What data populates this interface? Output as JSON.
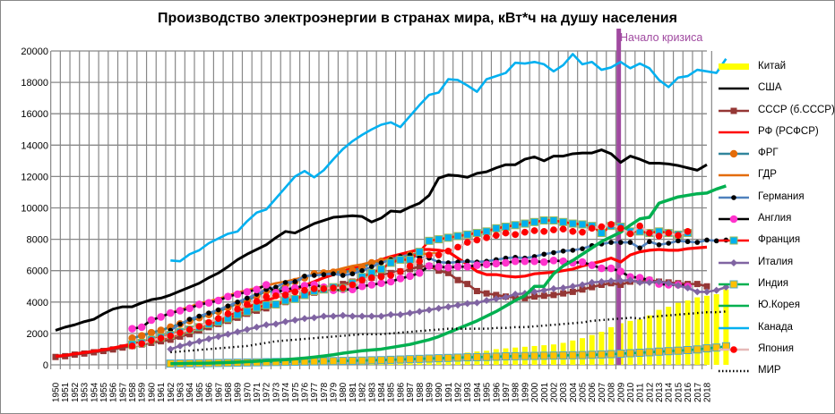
{
  "chart_data": {
    "type": "line",
    "title": "Производство электроэнергии в странах мира, кВт*ч на душу населения",
    "xlabel": "",
    "ylabel": "",
    "ylim": [
      0,
      20000
    ],
    "yticks": [
      0,
      2000,
      4000,
      6000,
      8000,
      10000,
      12000,
      14000,
      16000,
      18000,
      20000
    ],
    "grid": true,
    "legend_position": "right",
    "x": [
      1950,
      1951,
      1952,
      1953,
      1954,
      1955,
      1956,
      1957,
      1958,
      1959,
      1960,
      1961,
      1962,
      1963,
      1964,
      1965,
      1966,
      1967,
      1968,
      1969,
      1970,
      1971,
      1972,
      1973,
      1974,
      1975,
      1976,
      1977,
      1978,
      1979,
      1980,
      1981,
      1982,
      1983,
      1984,
      1985,
      1986,
      1987,
      1988,
      1989,
      1990,
      1991,
      1992,
      1993,
      1994,
      1995,
      1996,
      1997,
      1998,
      1999,
      2000,
      2001,
      2002,
      2003,
      2004,
      2005,
      2006,
      2007,
      2008,
      2009,
      2010,
      2011,
      2012,
      2013,
      2014,
      2015,
      2016,
      2017,
      2018
    ],
    "annotation": {
      "label": "Начало кризиса",
      "x": 2008.8,
      "color": "#a04aa0"
    },
    "series": [
      {
        "name": "Китай",
        "kind": "bar",
        "color": "#ffff00",
        "start": 1962,
        "values": [
          80,
          90,
          100,
          110,
          120,
          120,
          130,
          150,
          160,
          180,
          200,
          220,
          240,
          260,
          270,
          290,
          300,
          320,
          330,
          350,
          380,
          400,
          420,
          450,
          480,
          500,
          550,
          600,
          620,
          650,
          700,
          780,
          850,
          900,
          1000,
          1050,
          1100,
          1150,
          1200,
          1250,
          1300,
          1400,
          1550,
          1700,
          1900,
          2100,
          2400,
          2650,
          2800,
          2900,
          3150,
          3500,
          3700,
          3950,
          4100,
          4300,
          4400,
          4500,
          4800
        ]
      },
      {
        "name": "США",
        "kind": "line",
        "color": "#000000",
        "start": 1950,
        "values": [
          2200,
          2400,
          2550,
          2750,
          2900,
          3250,
          3550,
          3700,
          3700,
          3950,
          4150,
          4250,
          4450,
          4700,
          4950,
          5200,
          5550,
          5850,
          6250,
          6700,
          7050,
          7350,
          7650,
          8100,
          8500,
          8400,
          8700,
          9000,
          9200,
          9400,
          9450,
          9500,
          9450,
          9100,
          9350,
          9800,
          9750,
          10050,
          10300,
          10800,
          11900,
          12100,
          12050,
          11950,
          12200,
          12300,
          12550,
          12750,
          12750,
          13100,
          13250,
          13000,
          13300,
          13300,
          13450,
          13500,
          13500,
          13700,
          13450,
          12900,
          13300,
          13100,
          12850,
          12850,
          12800,
          12700,
          12550,
          12400,
          12750
        ]
      },
      {
        "name": "СССР (б.СССР)",
        "kind": "line-marker",
        "color": "#953735",
        "marker": "square",
        "start": 1950,
        "values": [
          500,
          550,
          650,
          720,
          800,
          880,
          980,
          1100,
          1200,
          1300,
          1400,
          1500,
          1600,
          1800,
          1950,
          2200,
          2400,
          2600,
          2800,
          3000,
          3250,
          3450,
          3600,
          3800,
          4000,
          4200,
          4400,
          4600,
          4800,
          4950,
          5150,
          5300,
          5400,
          5550,
          5700,
          5850,
          5950,
          6100,
          6250,
          6300,
          6000,
          5850,
          5400,
          5150,
          4700,
          4550,
          4450,
          4350,
          4300,
          4250,
          4350,
          4400,
          4450,
          4550,
          4650,
          4800,
          4950,
          5100,
          5200,
          5100,
          5300,
          5350,
          5400,
          5300,
          5250,
          5200,
          5150,
          5150,
          5000
        ]
      },
      {
        "name": "РФ (РСФСР)",
        "kind": "line",
        "color": "#ff0000",
        "start": 1950,
        "values": [
          550,
          600,
          700,
          780,
          870,
          960,
          1070,
          1200,
          1320,
          1430,
          1550,
          1660,
          1800,
          2000,
          2200,
          2450,
          2680,
          2900,
          3150,
          3380,
          3650,
          3900,
          4100,
          4300,
          4550,
          4800,
          5050,
          5300,
          5550,
          5750,
          5950,
          6150,
          6300,
          6500,
          6700,
          6900,
          7050,
          7200,
          7350,
          7350,
          7300,
          7200,
          6800,
          6400,
          5950,
          5750,
          5750,
          5650,
          5600,
          5650,
          5800,
          5850,
          5900,
          6000,
          6100,
          6300,
          6450,
          6600,
          6800,
          6550,
          7000,
          7200,
          7300,
          7350,
          7300,
          7300,
          7400,
          7450,
          7500
        ]
      },
      {
        "name": "ФРГ",
        "kind": "line-marker",
        "color": "#31859c",
        "marker": "circle-orange",
        "start": 1958,
        "values": [
          1700,
          1850,
          2050,
          2200,
          2400,
          2600,
          2800,
          3000,
          3200,
          3400,
          3650,
          3900,
          4100,
          4400,
          4700,
          4650,
          5100,
          5300,
          5550,
          5800,
          5850,
          5900,
          5900,
          6000,
          6200,
          6500,
          6600,
          6700,
          6800,
          7000,
          7100
        ]
      },
      {
        "name": "ГДР",
        "kind": "line",
        "color": "#e46c0a",
        "start": 1962,
        "values": [
          3300,
          3500,
          3700,
          3900,
          4050,
          4200,
          4400,
          4600,
          4750,
          4900,
          5050,
          5200,
          5300,
          5450,
          5600,
          5750,
          5900,
          6000,
          6150,
          6300,
          6400,
          6550,
          6650,
          6750,
          6850,
          6950,
          7050,
          7100,
          7100
        ]
      },
      {
        "name": "Германия",
        "kind": "line-marker",
        "color": "#4f81bd",
        "marker": "dot-black",
        "start": 1962,
        "values": [
          2200,
          2600,
          2900,
          3100,
          3300,
          3500,
          3750,
          4000,
          4250,
          4500,
          4800,
          4950,
          5250,
          5300,
          5650,
          5700,
          5750,
          5800,
          5700,
          5800,
          6000,
          6250,
          6500,
          6700,
          6900,
          7000,
          6850,
          6800,
          6550,
          6500,
          6550,
          6600,
          6550,
          6600,
          6700,
          6800,
          6850,
          6800,
          6900,
          7050,
          7150,
          7250,
          7300,
          7400,
          7600,
          7700,
          7800,
          7800,
          7800,
          7450,
          7850,
          7650,
          7750,
          7900,
          7850,
          7800,
          7950,
          7900,
          7950
        ]
      },
      {
        "name": "Англия",
        "kind": "line-marker",
        "color": "#000000",
        "marker": "circle-pink",
        "start": 1958,
        "values": [
          2300,
          2400,
          2850,
          3050,
          3300,
          3450,
          3600,
          3850,
          3950,
          4100,
          4350,
          4500,
          4650,
          4800,
          5100,
          4600,
          4800,
          4900,
          5050,
          5100,
          4950,
          4750,
          4800,
          4800,
          5000,
          5100,
          5200,
          5300,
          5500,
          5650,
          5850,
          6300,
          6250,
          6200,
          6250,
          6250,
          6350,
          6400,
          6450,
          6500,
          6600,
          6600,
          6600,
          6550,
          6650,
          6600,
          6500,
          6550,
          6350,
          6150,
          6150,
          5950,
          5600,
          5550,
          5400,
          5150,
          5100,
          5100,
          5000
        ]
      },
      {
        "name": "Франция",
        "kind": "line-marker",
        "color": "#ff0000",
        "marker": "square-blue",
        "start": 1958,
        "values": [
          1300,
          1400,
          1600,
          1750,
          1900,
          2100,
          2250,
          2400,
          2600,
          2750,
          2950,
          3200,
          3400,
          3650,
          3800,
          3850,
          4100,
          4200,
          4450,
          4700,
          4800,
          4950,
          4900,
          5200,
          5600,
          5850,
          6100,
          6500,
          6700,
          6700,
          7200,
          7900,
          8000,
          8100,
          8200,
          8300,
          8400,
          8500,
          8700,
          8800,
          8900,
          9000,
          9100,
          9200,
          9200,
          9100,
          9000,
          8950,
          8850,
          8400,
          8850,
          8800,
          8500,
          8500,
          8400,
          8500,
          8400,
          8300,
          8400
        ]
      },
      {
        "name": "Италия",
        "kind": "line-marker",
        "color": "#8064a2",
        "marker": "diamond",
        "start": 1962,
        "values": [
          1000,
          1200,
          1350,
          1500,
          1650,
          1800,
          1950,
          2100,
          2250,
          2400,
          2550,
          2600,
          2750,
          2850,
          2950,
          3000,
          3100,
          3100,
          3150,
          3100,
          3100,
          3100,
          3100,
          3200,
          3200,
          3300,
          3400,
          3500,
          3600,
          3700,
          3800,
          3900,
          3950,
          4100,
          4200,
          4300,
          4500,
          4550,
          4650,
          4750,
          4850,
          4900,
          5000,
          5100,
          5250,
          5300,
          5350,
          5350,
          5400,
          5250,
          5250,
          5300,
          5200,
          5050,
          4900,
          4650,
          4650,
          4750,
          4950
        ]
      },
      {
        "name": "Индия",
        "kind": "line-marker",
        "color": "#00b050",
        "marker": "square-amber",
        "start": 1962,
        "values": [
          80,
          85,
          90,
          100,
          110,
          120,
          130,
          140,
          150,
          160,
          170,
          180,
          190,
          200,
          210,
          220,
          230,
          240,
          250,
          260,
          270,
          290,
          300,
          320,
          340,
          360,
          380,
          400,
          420,
          440,
          460,
          480,
          490,
          500,
          520,
          540,
          550,
          560,
          570,
          580,
          590,
          600,
          610,
          620,
          640,
          660,
          680,
          710,
          740,
          770,
          800,
          840,
          870,
          900,
          940,
          980,
          1050,
          1100,
          1180
        ]
      },
      {
        "name": "Ю.Корея",
        "kind": "line",
        "color": "#00b050",
        "start": 1962,
        "values": [
          70,
          80,
          90,
          100,
          110,
          130,
          150,
          170,
          200,
          230,
          270,
          300,
          330,
          380,
          430,
          490,
          560,
          640,
          740,
          820,
          900,
          950,
          1000,
          1100,
          1200,
          1300,
          1450,
          1600,
          1800,
          2050,
          2300,
          2550,
          2800,
          3100,
          3400,
          3750,
          4100,
          4400,
          5000,
          5000,
          5800,
          6300,
          6650,
          7050,
          7450,
          7850,
          8150,
          8450,
          8900,
          9300,
          9400,
          10300,
          10500,
          10700,
          10800,
          10900,
          10950,
          11200,
          11400
        ]
      },
      {
        "name": "Канада",
        "kind": "line",
        "color": "#00b0f0",
        "start": 1962,
        "values": [
          6650,
          6600,
          7050,
          7300,
          7750,
          8050,
          8350,
          8500,
          9150,
          9700,
          9900,
          10600,
          11300,
          12000,
          12350,
          11950,
          12400,
          13100,
          13750,
          14250,
          14650,
          15000,
          15300,
          15450,
          15150,
          15850,
          16550,
          17200,
          17350,
          18200,
          18150,
          17800,
          17400,
          18200,
          18400,
          18600,
          19250,
          19200,
          19300,
          19150,
          18700,
          19100,
          19800,
          19150,
          19300,
          18800,
          18950,
          19300,
          18900,
          19200,
          18900,
          18150,
          17700,
          18300,
          18400,
          18800,
          18700,
          18600,
          19500
        ]
      },
      {
        "name": "Япония",
        "kind": "line-marker",
        "color": "#e6b9b8",
        "marker": "circle-red",
        "start": 1958,
        "values": [
          1200,
          1350,
          1550,
          1700,
          1850,
          2050,
          2250,
          2450,
          2700,
          2950,
          3250,
          3550,
          3850,
          4050,
          4350,
          4400,
          4450,
          4650,
          4750,
          4850,
          4850,
          4900,
          4900,
          5100,
          5400,
          5550,
          5600,
          5700,
          5950,
          6300,
          6600,
          7000,
          7000,
          7250,
          7500,
          7800,
          7950,
          8100,
          8250,
          8400,
          8300,
          8450,
          8550,
          8500,
          8600,
          8650,
          8500,
          8450,
          8700,
          8800,
          8950,
          8700,
          8350,
          8850,
          8400,
          8200,
          8400,
          8250,
          8500
        ]
      },
      {
        "name": "МИР",
        "kind": "dotted",
        "color": "#000000",
        "start": 1962,
        "values": [
          800,
          850,
          900,
          950,
          1000,
          1050,
          1100,
          1150,
          1200,
          1300,
          1400,
          1500,
          1550,
          1600,
          1650,
          1700,
          1750,
          1800,
          1850,
          1900,
          1950,
          1950,
          1950,
          2000,
          2050,
          2100,
          2150,
          2200,
          2250,
          2300,
          2300,
          2300,
          2300,
          2300,
          2350,
          2350,
          2400,
          2400,
          2450,
          2500,
          2550,
          2600,
          2650,
          2700,
          2800,
          2850,
          2900,
          2950,
          3000,
          2950,
          3050,
          3100,
          3150,
          3200,
          3250,
          3300,
          3350,
          3350,
          3400
        ]
      }
    ]
  },
  "legend": {
    "items": [
      {
        "label": "Китай"
      },
      {
        "label": "США"
      },
      {
        "label": "СССР (б.СССР)"
      },
      {
        "label": "РФ (РСФСР)"
      },
      {
        "label": "ФРГ"
      },
      {
        "label": "ГДР"
      },
      {
        "label": "Германия"
      },
      {
        "label": "Англия"
      },
      {
        "label": "Франция"
      },
      {
        "label": "Италия"
      },
      {
        "label": "Индия"
      },
      {
        "label": "Ю.Корея"
      },
      {
        "label": "Канада"
      },
      {
        "label": "Япония"
      },
      {
        "label": "МИР"
      }
    ]
  }
}
